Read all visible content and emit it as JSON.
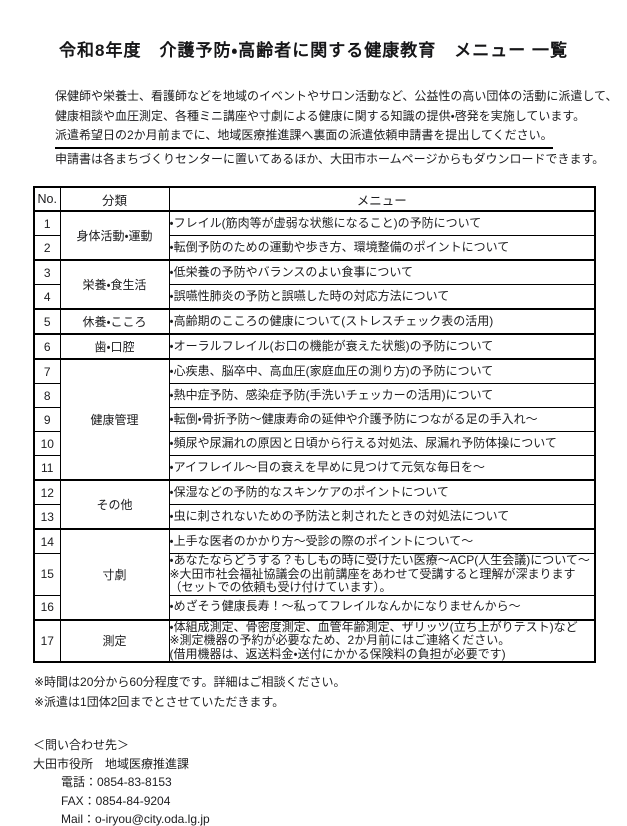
{
  "page": {
    "title": "令和8年度　介護予防・高齢者に関する健康教育　メニュー 一覧"
  },
  "intro": {
    "line1": "保健師や栄養士、看護師などを地域のイベントやサロン活動など、公益性の高い団体の活動に派遣して、",
    "line2": "健康相談や血圧測定、各種ミニ講座や寸劇による健康に関する知識の提供・啓発を実施しています。",
    "line3_underlined": "派遣希望日の2か月前までに、地域医療推進課へ裏面の派遣依頼申請書を提出してください。",
    "line4": "申請書は各まちづくりセンターに置いてあるほか、大田市ホームページからもダウンロードできます。"
  },
  "table": {
    "headers": {
      "no": "No.",
      "category": "分類",
      "menu": "メニュー"
    },
    "rows": [
      {
        "no": "1",
        "category": "身体活動・運動",
        "menu": "・フレイル(筋肉等が虚弱な状態になること)の予防について"
      },
      {
        "no": "2",
        "menu": "・転倒予防のための運動や歩き方、環境整備のポイントについて"
      },
      {
        "no": "3",
        "category": "栄養・食生活",
        "menu": "・低栄養の予防やバランスのよい食事について"
      },
      {
        "no": "4",
        "menu": "・誤嚥性肺炎の予防と誤嚥した時の対応方法について"
      },
      {
        "no": "5",
        "category": "休養・こころ",
        "menu": "・高齢期のこころの健康について(ストレスチェック表の活用)"
      },
      {
        "no": "6",
        "category": "歯・口腔",
        "menu": "・オーラルフレイル(お口の機能が衰えた状態)の予防について"
      },
      {
        "no": "7",
        "category": "健康管理",
        "menu": "・心疾患、脳卒中、高血圧(家庭血圧の測り方)の予防について"
      },
      {
        "no": "8",
        "menu": "・熱中症予防、感染症予防(手洗いチェッカーの活用)について"
      },
      {
        "no": "9",
        "menu": "・転倒・骨折予防～健康寿命の延伸や介護予防につながる足の手入れ～"
      },
      {
        "no": "10",
        "menu": "・頻尿や尿漏れの原因と日頃から行える対処法、尿漏れ予防体操について"
      },
      {
        "no": "11",
        "menu": "・アイフレイル～目の衰えを早めに見つけて元気な毎日を～"
      },
      {
        "no": "12",
        "category": "その他",
        "menu": "・保湿などの予防的なスキンケアのポイントについて"
      },
      {
        "no": "13",
        "menu": "・虫に刺されないための予防法と刺されたときの対処法について"
      },
      {
        "no": "14",
        "category": "寸劇",
        "menu": "・上手な医者のかかり方～受診の際のポイントについて～"
      },
      {
        "no": "15",
        "menu_lines": [
          "・あなたならどうする？もしもの時に受けたい医療～ACP(人生会議)について～",
          "※大田市社会福祉協議会の出前講座をあわせて受講すると理解が深まります",
          "（セットでの依頼も受け付けています）。"
        ]
      },
      {
        "no": "16",
        "menu": "・めざそう健康長寿！～私ってフレイルなんかになりませんから～"
      },
      {
        "no": "17",
        "category": "測定",
        "menu_lines": [
          "・体組成測定、骨密度測定、血管年齢測定、ザリッツ(立ち上がりテスト)など",
          "※測定機器の予約が必要なため、2か月前にはご連絡ください。",
          "(借用機器は、返送料金・送付にかかる保険料の負担が必要です)"
        ]
      }
    ]
  },
  "notes": [
    "※時間は20分から60分程度です。詳細はご相談ください。",
    "※派遣は1団体2回までとさせていただきます。"
  ],
  "contact": {
    "heading": "＜問い合わせ先＞",
    "org": "大田市役所　地域医療推進課",
    "tel": "電話：0854-83-8153",
    "fax": "FAX：0854-84-9204",
    "mail": "Mail：o-iryou@city.oda.lg.jp"
  },
  "colors": {
    "background": "#ffffff",
    "text": "#1c1c1e",
    "border": "#000000"
  }
}
